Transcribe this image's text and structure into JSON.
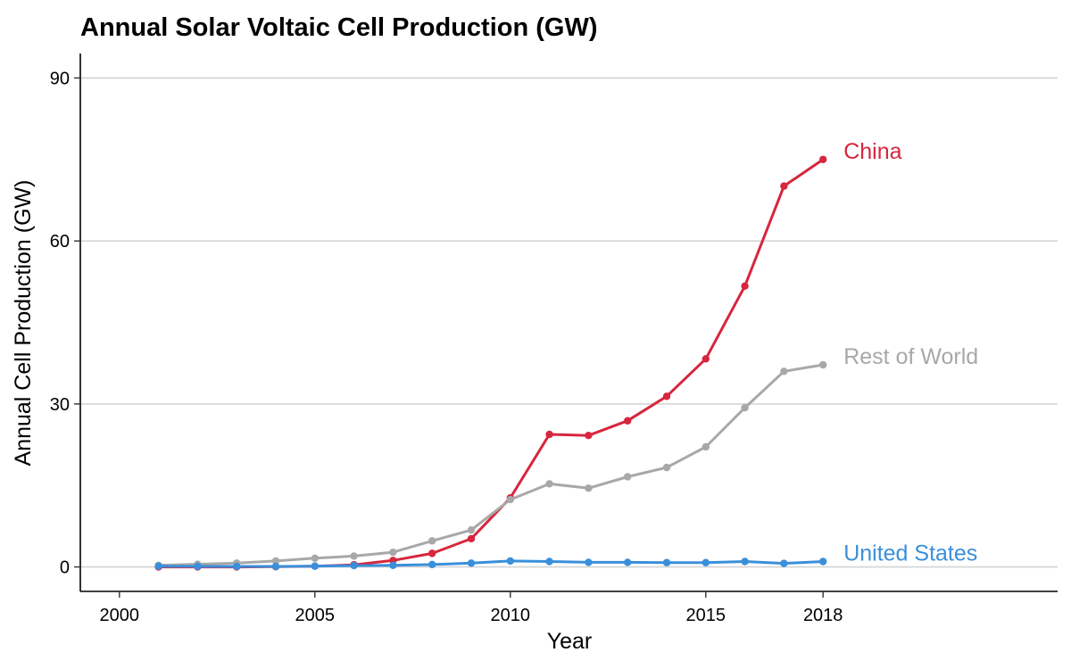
{
  "chart_data": {
    "type": "line",
    "title": "Annual Solar Voltaic Cell Production (GW)",
    "xlabel": "Year",
    "ylabel": "Annual Cell Production (GW)",
    "xlim": [
      1999,
      2024
    ],
    "ylim": [
      -4.5,
      94.5
    ],
    "x_ticks": [
      2000,
      2005,
      2010,
      2015,
      2018
    ],
    "y_ticks": [
      0,
      30,
      60,
      90
    ],
    "grid": "horizontal major lines",
    "legend": "direct labels at line ends (right)",
    "x": [
      2001,
      2002,
      2003,
      2004,
      2005,
      2006,
      2007,
      2008,
      2009,
      2010,
      2011,
      2012,
      2013,
      2014,
      2015,
      2016,
      2017,
      2018
    ],
    "series": [
      {
        "name": "China",
        "color": "#D7263D",
        "values": [
          0.0,
          0.0,
          0.0,
          0.05,
          0.15,
          0.4,
          1.2,
          2.5,
          5.2,
          12.7,
          24.4,
          24.2,
          26.9,
          31.4,
          38.3,
          51.7,
          70.1,
          75.0
        ]
      },
      {
        "name": "Rest of World",
        "color": "#A8A8A8",
        "values": [
          0.3,
          0.5,
          0.7,
          1.1,
          1.6,
          2.0,
          2.7,
          4.8,
          6.8,
          12.4,
          15.3,
          14.5,
          16.6,
          18.3,
          22.1,
          29.3,
          36.0,
          37.2
        ]
      },
      {
        "name": "United States",
        "color": "#3A8FDB",
        "values": [
          0.15,
          0.12,
          0.1,
          0.1,
          0.15,
          0.25,
          0.3,
          0.45,
          0.7,
          1.1,
          1.0,
          0.85,
          0.85,
          0.8,
          0.8,
          1.0,
          0.65,
          1.0
        ]
      }
    ]
  }
}
